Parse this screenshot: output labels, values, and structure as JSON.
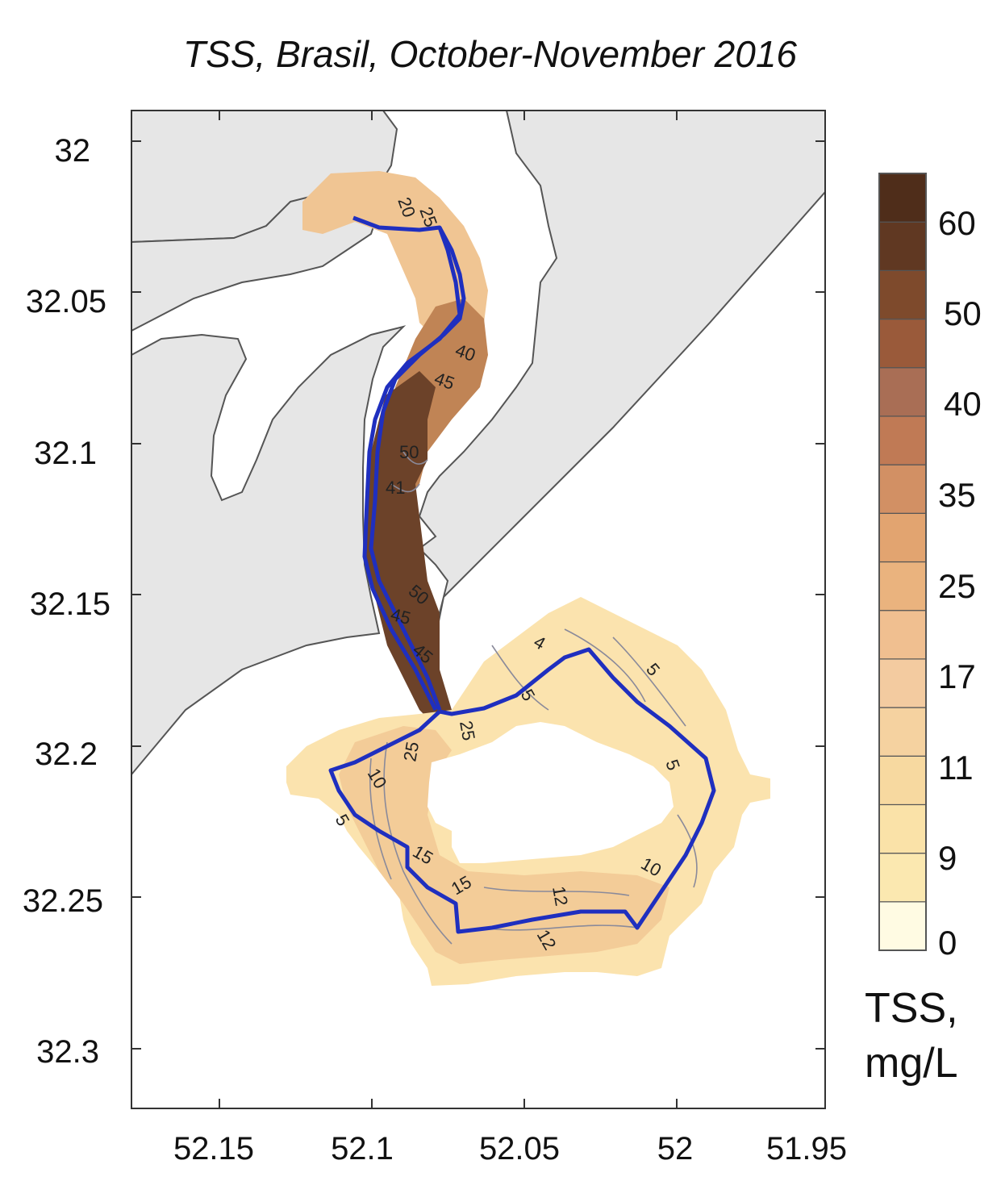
{
  "title": "TSS, Brasil, October-November 2016",
  "axes": {
    "y_ticks": [
      "32",
      "32.05",
      "32.1",
      "32.15",
      "32.2",
      "32.25",
      "32.3"
    ],
    "x_ticks": [
      "52.15",
      "52.1",
      "52.05",
      "52",
      "51.95"
    ]
  },
  "colorbar": {
    "labels": [
      "60",
      "50",
      "40",
      "35",
      "25",
      "17",
      "11",
      "9",
      "0"
    ],
    "unit_line1": "TSS,",
    "unit_line2": "mg/L",
    "colors": [
      "#fffbe3",
      "#fbe8b0",
      "#fae2a8",
      "#f7d9a0",
      "#f5d2a0",
      "#f3cba0",
      "#f0bf90",
      "#eab37e",
      "#e2a470",
      "#d29064",
      "#c07a55",
      "#a96e55",
      "#9a5a3a",
      "#7e4a2c",
      "#603822",
      "#4f2d1a"
    ]
  },
  "contour_labels": [
    "20",
    "25",
    "40",
    "45",
    "50",
    "41",
    "45",
    "50",
    "45",
    "4",
    "5",
    "5",
    "25",
    "25",
    "10",
    "5",
    "15",
    "15",
    "12",
    "12",
    "10",
    "5"
  ],
  "colors": {
    "land": "#e6e6e6",
    "coast": "#555555",
    "track": "#1f2fbf",
    "frame": "#333333"
  }
}
